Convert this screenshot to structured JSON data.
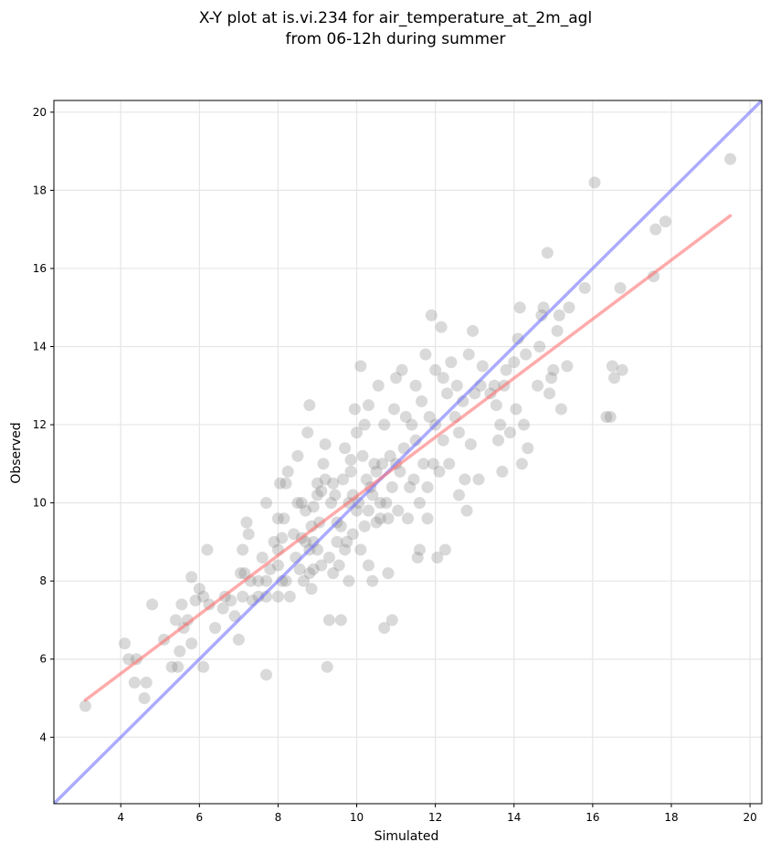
{
  "chart_data": {
    "type": "scatter",
    "title": "X-Y plot at is.vi.234 for air_temperature_at_2m_agl",
    "subtitle": "from 06-12h during summer",
    "xlabel": "Simulated",
    "ylabel": "Observed",
    "xlim": [
      2.3,
      20.3
    ],
    "ylim": [
      2.3,
      20.3
    ],
    "x_ticks": [
      "4",
      "6",
      "8",
      "10",
      "12",
      "14",
      "16",
      "18",
      "20"
    ],
    "y_ticks": [
      "4",
      "6",
      "8",
      "10",
      "12",
      "14",
      "16",
      "18",
      "20"
    ],
    "grid": true,
    "point_color": "#808080",
    "identity_line": {
      "from": [
        2.3,
        2.3
      ],
      "to": [
        20.3,
        20.3
      ],
      "color": "#6666ff"
    },
    "fit_line": {
      "from": [
        3.1,
        4.95
      ],
      "to": [
        19.5,
        17.35
      ],
      "color": "#ff6666"
    },
    "points": [
      [
        3.1,
        4.8
      ],
      [
        4.1,
        6.4
      ],
      [
        4.2,
        6.0
      ],
      [
        4.35,
        5.4
      ],
      [
        4.4,
        6.0
      ],
      [
        4.6,
        5.0
      ],
      [
        4.65,
        5.4
      ],
      [
        4.8,
        7.4
      ],
      [
        5.1,
        6.5
      ],
      [
        5.3,
        5.8
      ],
      [
        5.4,
        7.0
      ],
      [
        5.45,
        5.8
      ],
      [
        5.5,
        6.2
      ],
      [
        5.55,
        7.4
      ],
      [
        5.6,
        6.8
      ],
      [
        5.7,
        7.0
      ],
      [
        5.8,
        6.4
      ],
      [
        5.8,
        8.1
      ],
      [
        5.9,
        7.5
      ],
      [
        6.0,
        7.8
      ],
      [
        6.1,
        5.8
      ],
      [
        6.1,
        7.6
      ],
      [
        6.2,
        8.8
      ],
      [
        6.25,
        7.4
      ],
      [
        6.4,
        6.8
      ],
      [
        6.6,
        7.3
      ],
      [
        6.65,
        7.6
      ],
      [
        6.8,
        7.5
      ],
      [
        6.9,
        7.1
      ],
      [
        7.0,
        6.5
      ],
      [
        7.05,
        8.2
      ],
      [
        7.1,
        7.6
      ],
      [
        7.1,
        8.8
      ],
      [
        7.15,
        8.2
      ],
      [
        7.2,
        9.5
      ],
      [
        7.25,
        9.2
      ],
      [
        7.3,
        8.0
      ],
      [
        7.35,
        7.5
      ],
      [
        7.5,
        8.0
      ],
      [
        7.5,
        7.6
      ],
      [
        7.6,
        8.6
      ],
      [
        7.7,
        7.6
      ],
      [
        7.7,
        8.0
      ],
      [
        7.7,
        5.6
      ],
      [
        7.7,
        10.0
      ],
      [
        7.8,
        8.3
      ],
      [
        7.9,
        9.0
      ],
      [
        8.0,
        7.6
      ],
      [
        8.0,
        8.4
      ],
      [
        8.0,
        8.8
      ],
      [
        8.0,
        9.6
      ],
      [
        8.05,
        10.5
      ],
      [
        8.1,
        8.0
      ],
      [
        8.1,
        9.1
      ],
      [
        8.15,
        9.6
      ],
      [
        8.2,
        8.0
      ],
      [
        8.2,
        10.5
      ],
      [
        8.25,
        10.8
      ],
      [
        8.3,
        7.6
      ],
      [
        8.4,
        9.2
      ],
      [
        8.45,
        8.6
      ],
      [
        8.5,
        10.0
      ],
      [
        8.5,
        11.2
      ],
      [
        8.55,
        8.3
      ],
      [
        8.6,
        9.1
      ],
      [
        8.6,
        10.0
      ],
      [
        8.65,
        8.0
      ],
      [
        8.7,
        9.0
      ],
      [
        8.7,
        9.8
      ],
      [
        8.75,
        11.8
      ],
      [
        8.8,
        8.2
      ],
      [
        8.8,
        8.8
      ],
      [
        8.8,
        12.5
      ],
      [
        8.85,
        7.8
      ],
      [
        8.85,
        9.4
      ],
      [
        8.9,
        8.3
      ],
      [
        8.9,
        9.0
      ],
      [
        8.9,
        9.9
      ],
      [
        9.0,
        8.8
      ],
      [
        9.0,
        10.2
      ],
      [
        9.0,
        10.5
      ],
      [
        9.05,
        9.5
      ],
      [
        9.1,
        8.4
      ],
      [
        9.1,
        10.3
      ],
      [
        9.15,
        11.0
      ],
      [
        9.2,
        10.6
      ],
      [
        9.2,
        11.5
      ],
      [
        9.25,
        5.8
      ],
      [
        9.3,
        7.0
      ],
      [
        9.3,
        8.6
      ],
      [
        9.35,
        10.0
      ],
      [
        9.4,
        8.2
      ],
      [
        9.4,
        10.5
      ],
      [
        9.45,
        10.2
      ],
      [
        9.5,
        9.0
      ],
      [
        9.5,
        9.5
      ],
      [
        9.55,
        8.4
      ],
      [
        9.6,
        7.0
      ],
      [
        9.6,
        9.4
      ],
      [
        9.65,
        10.6
      ],
      [
        9.7,
        8.8
      ],
      [
        9.7,
        11.4
      ],
      [
        9.75,
        9.0
      ],
      [
        9.8,
        10.0
      ],
      [
        9.8,
        8.0
      ],
      [
        9.85,
        10.8
      ],
      [
        9.85,
        11.1
      ],
      [
        9.9,
        9.2
      ],
      [
        9.9,
        10.2
      ],
      [
        9.95,
        12.4
      ],
      [
        10.0,
        9.8
      ],
      [
        10.0,
        11.8
      ],
      [
        10.05,
        10.0
      ],
      [
        10.1,
        8.8
      ],
      [
        10.1,
        13.5
      ],
      [
        10.15,
        11.2
      ],
      [
        10.2,
        9.4
      ],
      [
        10.2,
        12.0
      ],
      [
        10.25,
        10.6
      ],
      [
        10.3,
        8.4
      ],
      [
        10.3,
        9.8
      ],
      [
        10.3,
        12.5
      ],
      [
        10.35,
        10.4
      ],
      [
        10.4,
        8.0
      ],
      [
        10.4,
        10.2
      ],
      [
        10.45,
        11.0
      ],
      [
        10.5,
        9.5
      ],
      [
        10.5,
        10.8
      ],
      [
        10.55,
        13.0
      ],
      [
        10.6,
        9.6
      ],
      [
        10.6,
        10.0
      ],
      [
        10.65,
        11.0
      ],
      [
        10.7,
        6.8
      ],
      [
        10.7,
        12.0
      ],
      [
        10.75,
        10.0
      ],
      [
        10.8,
        8.2
      ],
      [
        10.8,
        9.6
      ],
      [
        10.85,
        11.2
      ],
      [
        10.9,
        7.0
      ],
      [
        10.9,
        10.4
      ],
      [
        10.95,
        12.4
      ],
      [
        11.0,
        11.0
      ],
      [
        11.0,
        13.2
      ],
      [
        11.05,
        9.8
      ],
      [
        11.1,
        10.8
      ],
      [
        11.15,
        13.4
      ],
      [
        11.2,
        11.4
      ],
      [
        11.25,
        12.2
      ],
      [
        11.3,
        9.6
      ],
      [
        11.35,
        10.4
      ],
      [
        11.4,
        12.0
      ],
      [
        11.45,
        10.6
      ],
      [
        11.5,
        11.6
      ],
      [
        11.5,
        13.0
      ],
      [
        11.55,
        8.6
      ],
      [
        11.6,
        8.8
      ],
      [
        11.6,
        10.0
      ],
      [
        11.65,
        12.6
      ],
      [
        11.7,
        11.0
      ],
      [
        11.75,
        13.8
      ],
      [
        11.8,
        9.6
      ],
      [
        11.8,
        10.4
      ],
      [
        11.85,
        12.2
      ],
      [
        11.9,
        14.8
      ],
      [
        11.95,
        11.0
      ],
      [
        12.0,
        12.0
      ],
      [
        12.0,
        13.4
      ],
      [
        12.05,
        8.6
      ],
      [
        12.1,
        10.8
      ],
      [
        12.15,
        14.5
      ],
      [
        12.2,
        11.6
      ],
      [
        12.2,
        13.2
      ],
      [
        12.25,
        8.8
      ],
      [
        12.3,
        12.8
      ],
      [
        12.35,
        11.0
      ],
      [
        12.4,
        13.6
      ],
      [
        12.5,
        12.2
      ],
      [
        12.55,
        13.0
      ],
      [
        12.6,
        10.2
      ],
      [
        12.6,
        11.8
      ],
      [
        12.7,
        12.6
      ],
      [
        12.75,
        10.6
      ],
      [
        12.8,
        9.8
      ],
      [
        12.85,
        13.8
      ],
      [
        12.9,
        11.5
      ],
      [
        12.95,
        14.4
      ],
      [
        13.0,
        12.8
      ],
      [
        13.1,
        10.6
      ],
      [
        13.15,
        13.0
      ],
      [
        13.2,
        13.5
      ],
      [
        13.4,
        12.8
      ],
      [
        13.5,
        13.0
      ],
      [
        13.55,
        12.5
      ],
      [
        13.6,
        11.6
      ],
      [
        13.65,
        12.0
      ],
      [
        13.7,
        10.8
      ],
      [
        13.75,
        13.0
      ],
      [
        13.8,
        13.4
      ],
      [
        13.9,
        11.8
      ],
      [
        14.0,
        13.6
      ],
      [
        14.05,
        12.4
      ],
      [
        14.1,
        14.2
      ],
      [
        14.15,
        15.0
      ],
      [
        14.2,
        11.0
      ],
      [
        14.25,
        12.0
      ],
      [
        14.3,
        13.8
      ],
      [
        14.35,
        11.4
      ],
      [
        14.6,
        13.0
      ],
      [
        14.65,
        14.0
      ],
      [
        14.7,
        14.8
      ],
      [
        14.75,
        15.0
      ],
      [
        14.85,
        16.4
      ],
      [
        14.9,
        12.8
      ],
      [
        14.95,
        13.2
      ],
      [
        15.0,
        13.4
      ],
      [
        15.1,
        14.4
      ],
      [
        15.15,
        14.8
      ],
      [
        15.2,
        12.4
      ],
      [
        15.35,
        13.5
      ],
      [
        15.4,
        15.0
      ],
      [
        15.8,
        15.5
      ],
      [
        16.05,
        18.2
      ],
      [
        16.35,
        12.2
      ],
      [
        16.45,
        12.2
      ],
      [
        16.5,
        13.5
      ],
      [
        16.55,
        13.2
      ],
      [
        16.7,
        15.5
      ],
      [
        16.75,
        13.4
      ],
      [
        17.55,
        15.8
      ],
      [
        17.6,
        17.0
      ],
      [
        17.85,
        17.2
      ],
      [
        19.5,
        18.8
      ]
    ]
  }
}
